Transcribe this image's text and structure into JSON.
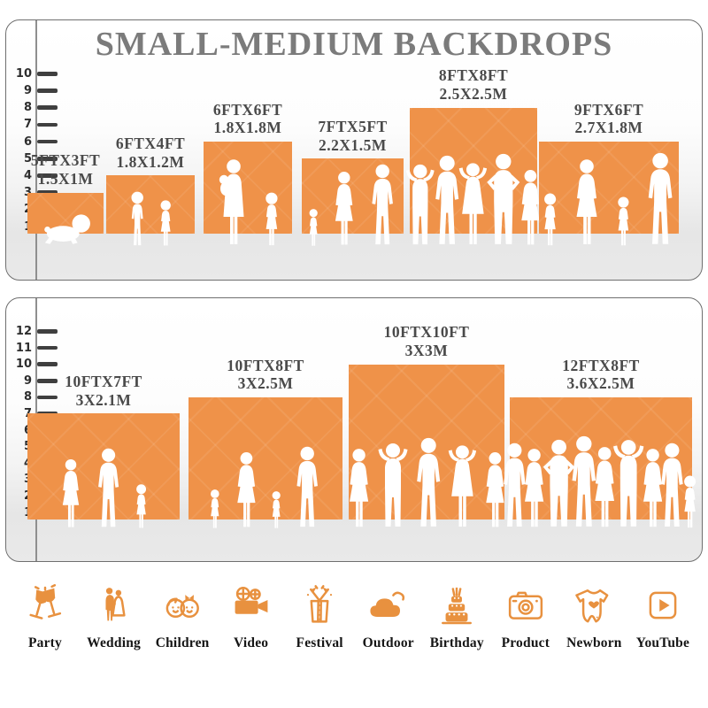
{
  "page": {
    "title": "SMALL-MEDIUM BACKDROPS"
  },
  "colors": {
    "backdrop_orange": "#EF9249",
    "icon_orange": "#E8913F",
    "title_gray": "#7B7B7B",
    "label_gray": "#4A4A4A",
    "tick_dark": "#3F3F3F",
    "panel_border": "#6F6F6F",
    "floor_gray": "#E9E9E9"
  },
  "chart_data": [
    {
      "type": "bar",
      "title": "SMALL-MEDIUM BACKDROPS",
      "panel": "top",
      "axis_range": [
        1,
        10
      ],
      "grid": false,
      "legend": "none",
      "note": "bar width/height are backdrop width/height in feet; white human silhouettes show scale",
      "bars": [
        {
          "size_ft": "5FTX3FT",
          "size_m": "1.5X1M",
          "width_ft": 5,
          "height_ft": 3,
          "people": [
            "baby"
          ]
        },
        {
          "size_ft": "6FTX4FT",
          "size_m": "1.8X1.2M",
          "width_ft": 6,
          "height_ft": 4,
          "people": [
            "boy",
            "girl"
          ]
        },
        {
          "size_ft": "6FTX6FT",
          "size_m": "1.8X1.8M",
          "width_ft": 6,
          "height_ft": 6,
          "people": [
            "woman-baby",
            "girl"
          ]
        },
        {
          "size_ft": "7FTX5FT",
          "size_m": "2.2X1.5M",
          "width_ft": 7,
          "height_ft": 5,
          "people": [
            "toddler",
            "woman",
            "man"
          ]
        },
        {
          "size_ft": "8FTX8FT",
          "size_m": "2.5X2.5M",
          "width_ft": 8,
          "height_ft": 8,
          "people": [
            "man-armsup",
            "man",
            "woman-armsup",
            "man-akimbo",
            "woman"
          ]
        },
        {
          "size_ft": "9FTX6FT",
          "size_m": "2.7X1.8M",
          "width_ft": 9,
          "height_ft": 6,
          "people": [
            "girl",
            "woman",
            "girl",
            "man"
          ]
        }
      ]
    },
    {
      "type": "bar",
      "panel": "bottom",
      "axis_range": [
        1,
        12
      ],
      "grid": false,
      "legend": "none",
      "bars": [
        {
          "size_ft": "10FTX7FT",
          "size_m": "3X2.1M",
          "width_ft": 10,
          "height_ft": 7,
          "people": [
            "woman",
            "man",
            "girl"
          ]
        },
        {
          "size_ft": "10FTX8FT",
          "size_m": "3X2.5M",
          "width_ft": 10,
          "height_ft": 8,
          "people": [
            "girl",
            "woman",
            "girl",
            "man"
          ]
        },
        {
          "size_ft": "10FTX10FT",
          "size_m": "3X3M",
          "width_ft": 10,
          "height_ft": 10,
          "people": [
            "woman",
            "man-armsup",
            "man",
            "woman-armsup",
            "woman"
          ]
        },
        {
          "size_ft": "12FTX8FT",
          "size_m": "3.6X2.5M",
          "width_ft": 12,
          "height_ft": 8,
          "people": [
            "man",
            "woman",
            "man-akimbo",
            "man",
            "woman",
            "man-armsup",
            "woman",
            "man",
            "girl"
          ]
        }
      ]
    }
  ],
  "categories": [
    {
      "label": "Party",
      "icon": "party-icon"
    },
    {
      "label": "Wedding",
      "icon": "wedding-icon"
    },
    {
      "label": "Children",
      "icon": "children-icon"
    },
    {
      "label": "Video",
      "icon": "video-icon"
    },
    {
      "label": "Festival",
      "icon": "festival-icon"
    },
    {
      "label": "Outdoor",
      "icon": "outdoor-icon"
    },
    {
      "label": "Birthday",
      "icon": "birthday-icon"
    },
    {
      "label": "Product",
      "icon": "product-icon"
    },
    {
      "label": "Newborn",
      "icon": "newborn-icon"
    },
    {
      "label": "YouTube",
      "icon": "youtube-icon"
    }
  ]
}
